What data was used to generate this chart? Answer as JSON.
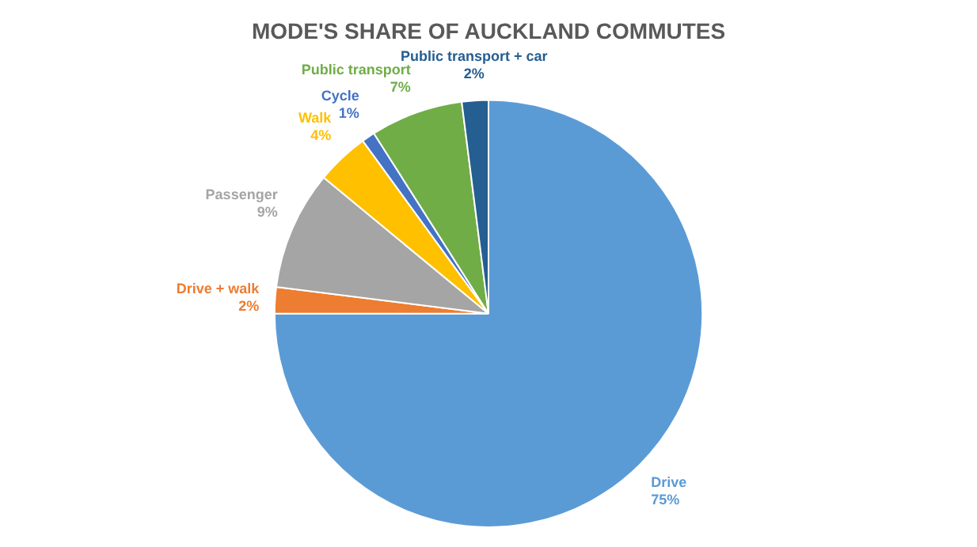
{
  "chart_data": {
    "type": "pie",
    "title": "MODE'S SHARE OF AUCKLAND COMMUTES",
    "categories": [
      "Drive",
      "Drive + walk",
      "Passenger",
      "Walk",
      "Cycle",
      "Public transport",
      "Public transport + car"
    ],
    "values": [
      75,
      2,
      9,
      4,
      1,
      7,
      2
    ],
    "colors": [
      "#5b9bd5",
      "#ed7d31",
      "#a5a5a5",
      "#ffc000",
      "#4472c4",
      "#70ad47",
      "#255e91"
    ],
    "value_labels": [
      "75%",
      "2%",
      "9%",
      "4%",
      "1%",
      "7%",
      "2%"
    ],
    "legend": false
  }
}
